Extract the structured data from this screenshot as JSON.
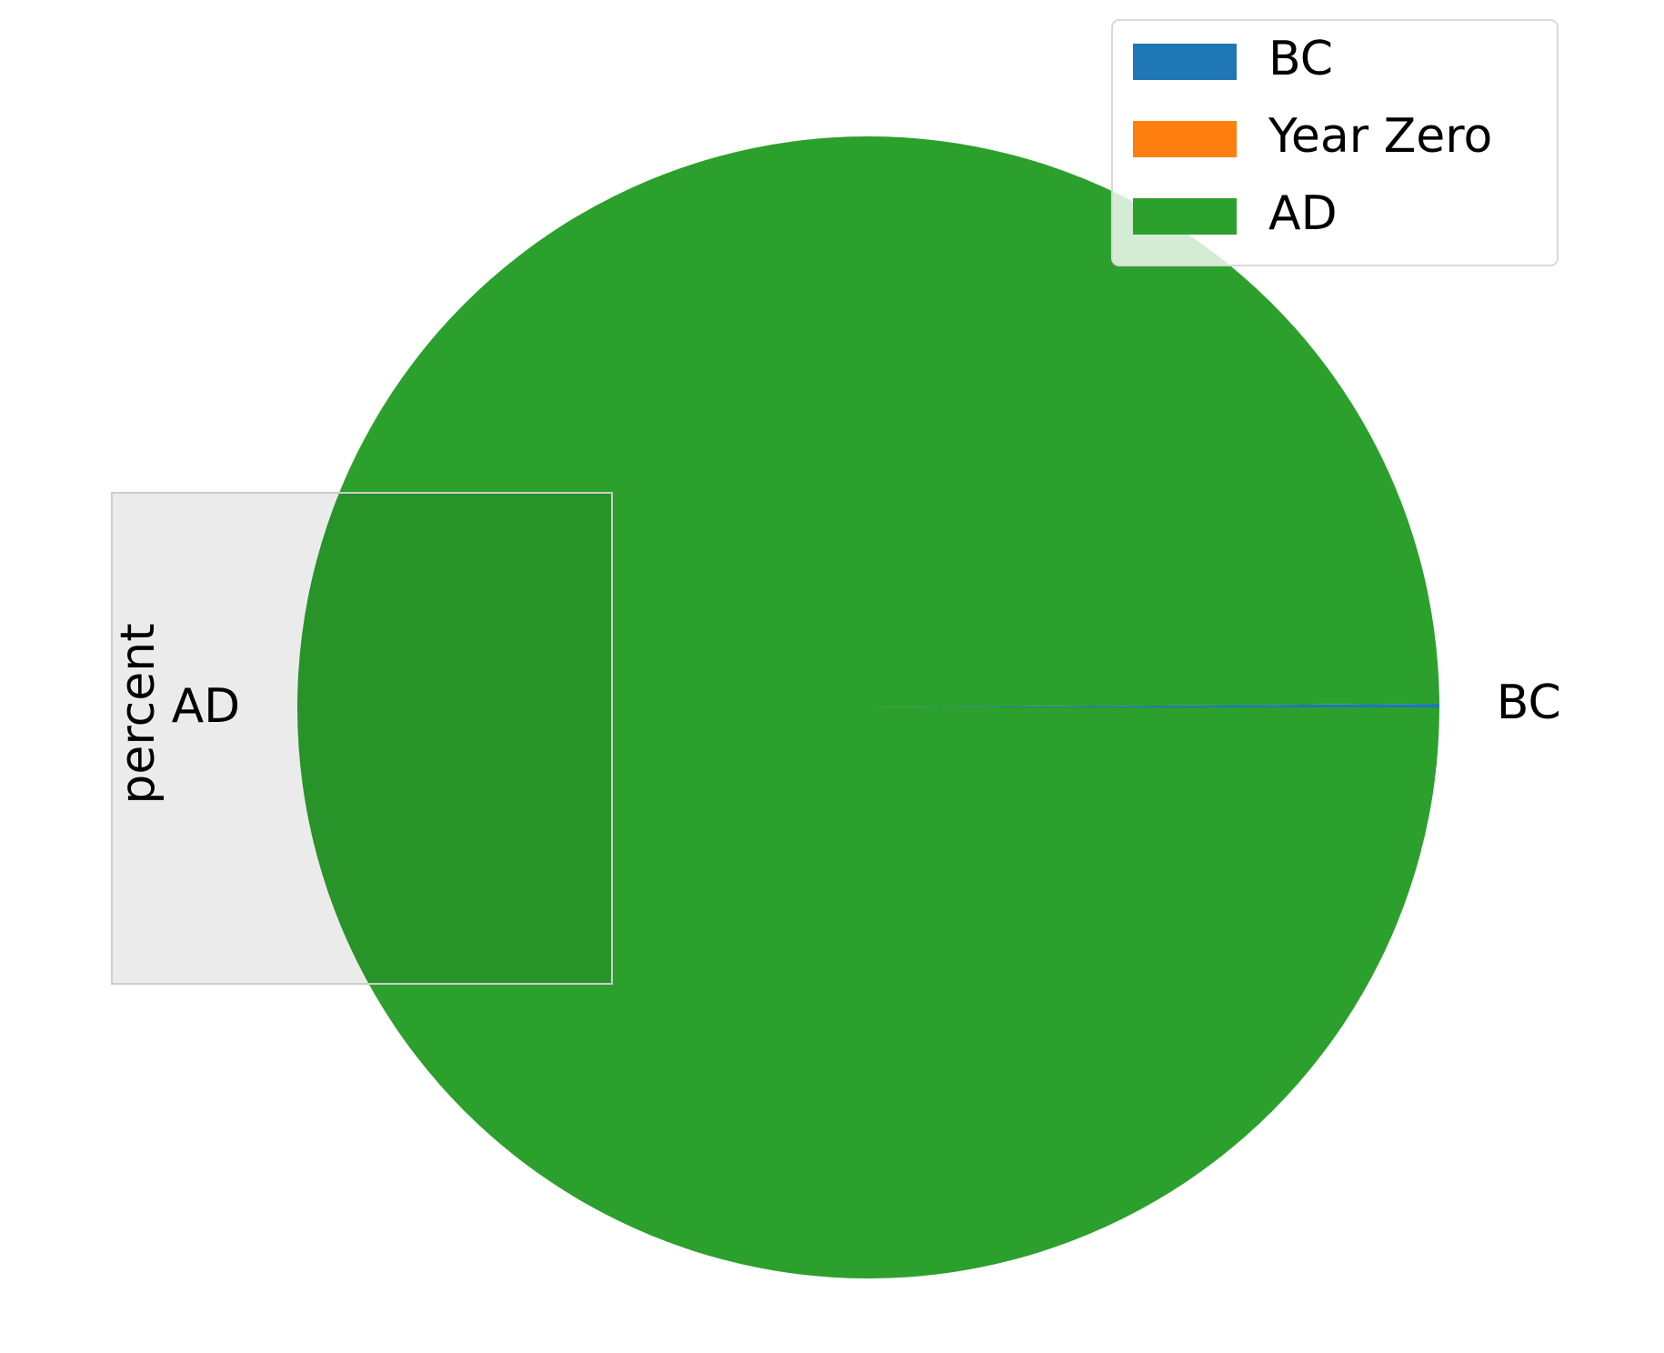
{
  "chart_data": {
    "type": "pie",
    "ylabel": "percent",
    "categories": [
      "BC",
      "Year Zero",
      "AD"
    ],
    "values": [
      0.1,
      0.0,
      99.9
    ],
    "colors": [
      "#1f77b4",
      "#ff7f0e",
      "#2ca02c"
    ],
    "slice_labels": [
      "BC",
      "",
      "AD"
    ],
    "legend": {
      "placement": "top-right",
      "entries": [
        "BC",
        "Year Zero",
        "AD"
      ]
    },
    "start_angle_deg": 0,
    "direction": "counterclockwise"
  }
}
